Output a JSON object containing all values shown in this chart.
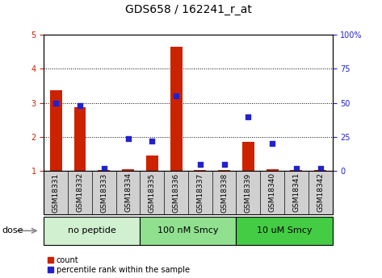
{
  "title": "GDS658 / 162241_r_at",
  "samples": [
    "GSM18331",
    "GSM18332",
    "GSM18333",
    "GSM18334",
    "GSM18335",
    "GSM18336",
    "GSM18337",
    "GSM18338",
    "GSM18339",
    "GSM18340",
    "GSM18341",
    "GSM18342"
  ],
  "count_values": [
    3.38,
    2.88,
    1.02,
    1.05,
    1.45,
    4.65,
    1.02,
    1.02,
    1.85,
    1.05,
    1.02,
    1.02
  ],
  "percentile_values": [
    50,
    48,
    2,
    24,
    22,
    55,
    5,
    5,
    40,
    20,
    2,
    2
  ],
  "ylim_left": [
    1,
    5
  ],
  "ylim_right": [
    0,
    100
  ],
  "yticks_left": [
    1,
    2,
    3,
    4,
    5
  ],
  "ytick_labels_left": [
    "1",
    "2",
    "3",
    "4",
    "5"
  ],
  "yticks_right": [
    0,
    25,
    50,
    75,
    100
  ],
  "ytick_labels_right": [
    "0",
    "25",
    "50",
    "75",
    "100%"
  ],
  "groups": [
    {
      "label": "no peptide",
      "start": 0,
      "end": 3,
      "color": "#d0f0d0"
    },
    {
      "label": "100 nM Smcy",
      "start": 4,
      "end": 7,
      "color": "#90e090"
    },
    {
      "label": "10 uM Smcy",
      "start": 8,
      "end": 11,
      "color": "#44cc44"
    }
  ],
  "bar_color": "#cc2200",
  "dot_color": "#2222cc",
  "bar_width": 0.5,
  "background_color": "#ffffff",
  "grid_color": "#000000",
  "sample_bg_color": "#d0d0d0",
  "dose_label": "dose",
  "legend_count": "count",
  "legend_percentile": "percentile rank within the sample",
  "title_fontsize": 10,
  "tick_fontsize": 7,
  "group_fontsize": 8
}
